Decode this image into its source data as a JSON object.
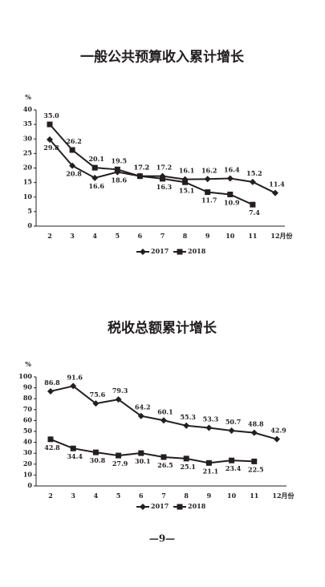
{
  "chart_data": [
    {
      "type": "line",
      "title": "一般公共预算收入累计增长",
      "y_label": "%",
      "categories": [
        "2",
        "3",
        "4",
        "5",
        "6",
        "7",
        "8",
        "9",
        "10",
        "11",
        "12月份"
      ],
      "ylim": [
        0,
        40
      ],
      "yticks": [
        0,
        5,
        10,
        15,
        20,
        25,
        30,
        35,
        40
      ],
      "series": [
        {
          "name": "2017",
          "color": "#231f20",
          "marker": "diamond",
          "values": [
            29.8,
            20.8,
            16.6,
            18.6,
            17.2,
            17.2,
            16.1,
            16.2,
            16.4,
            15.2,
            11.4
          ],
          "value_labels": [
            "29.8",
            "20.8",
            "16.6",
            "18.6",
            "17.2",
            "17.2",
            "16.1",
            "16.2",
            "16.4",
            "15.2",
            "11.4"
          ]
        },
        {
          "name": "2018",
          "color": "#231f20",
          "marker": "square",
          "values": [
            35.0,
            26.2,
            20.1,
            19.5,
            17.2,
            16.3,
            15.1,
            11.7,
            10.9,
            7.4,
            null
          ],
          "value_labels": [
            "35.0",
            "26.2",
            "20.1",
            "19.5",
            "17.2",
            "16.3",
            "15.1",
            "11.7",
            "10.9",
            "7.4",
            null
          ]
        }
      ]
    },
    {
      "type": "line",
      "title": "税收总额累计增长",
      "y_label": "%",
      "categories": [
        "2",
        "3",
        "4",
        "5",
        "6",
        "7",
        "8",
        "9",
        "10",
        "11",
        "12月份"
      ],
      "ylim": [
        0,
        100
      ],
      "yticks": [
        0,
        10,
        20,
        30,
        40,
        50,
        60,
        70,
        80,
        90,
        100
      ],
      "series": [
        {
          "name": "2017",
          "color": "#231f20",
          "marker": "diamond",
          "values": [
            86.8,
            91.6,
            75.6,
            79.3,
            64.2,
            60.1,
            55.3,
            53.3,
            50.7,
            48.8,
            42.9
          ],
          "value_labels": [
            "86.8",
            "91.6",
            "75.6",
            "79.3",
            "64.2",
            "60.1",
            "55.3",
            "53.3",
            "50.7",
            "48.8",
            "42.9"
          ]
        },
        {
          "name": "2018",
          "color": "#231f20",
          "marker": "square",
          "values": [
            42.8,
            34.4,
            30.8,
            27.9,
            30.1,
            26.5,
            25.1,
            21.1,
            23.4,
            22.5,
            null
          ],
          "value_labels": [
            "42.8",
            "34.4",
            "30.8",
            "27.9",
            "30.1",
            "26.5",
            "25.1",
            "21.1",
            "23.4",
            "22.5",
            null
          ]
        }
      ]
    }
  ],
  "page_number": "—9—"
}
